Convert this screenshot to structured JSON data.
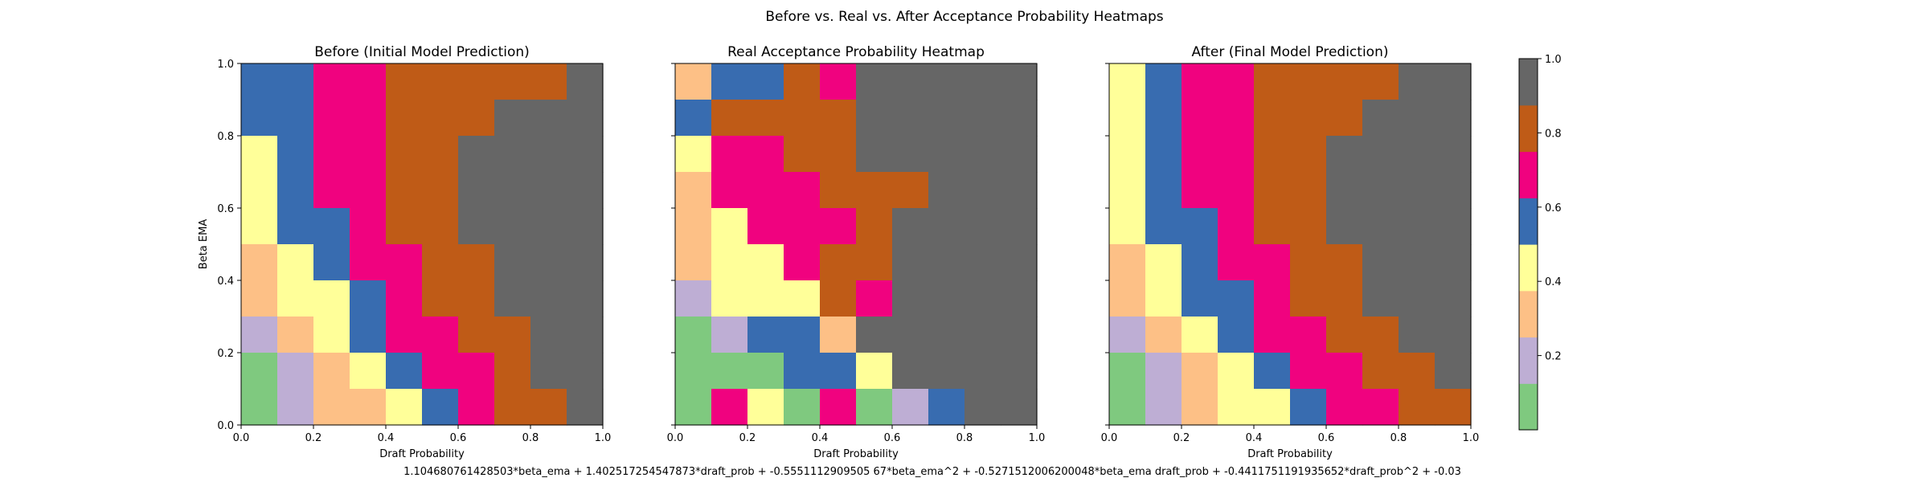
{
  "figure": {
    "suptitle": "Before vs. Real vs. After Acceptance Probability Heatmaps",
    "formula": "1.104680761428503*beta_ema + 1.402517254547873*draft_prob + -0.5551112909505 67*beta_ema^2 + -0.5271512006200048*beta_ema draft_prob + -0.4411751191935652*draft_prob^2 + -0.03"
  },
  "colorbar": {
    "ticks": [
      "0.2",
      "0.4",
      "0.6",
      "0.8",
      "1.0"
    ],
    "tick_values": [
      0.2,
      0.4,
      0.6,
      0.8,
      1.0
    ],
    "range": [
      0,
      1
    ],
    "colors": [
      "#7fc97f",
      "#beaed4",
      "#fdc086",
      "#ffff99",
      "#386cb0",
      "#f0027f",
      "#bf5b17",
      "#666666"
    ]
  },
  "chart_data": [
    {
      "type": "heatmap",
      "title": "Before (Initial Model Prediction)",
      "xlabel": "Draft Probability",
      "ylabel": "Beta EMA",
      "xlim": [
        0,
        1
      ],
      "ylim": [
        0,
        1
      ],
      "xticks": [
        "0.0",
        "0.2",
        "0.4",
        "0.6",
        "0.8",
        "1.0"
      ],
      "yticks": [
        "0.0",
        "0.2",
        "0.4",
        "0.6",
        "0.8",
        "1.0"
      ],
      "grid_note": "rows listed from top (beta_ema 0.9-1.0) to bottom (0.0-0.1); columns draft_prob 0.0-0.1 ... 0.9-1.0; values are color-bin indices 0..7",
      "bins": [
        [
          4,
          4,
          5,
          5,
          6,
          6,
          6,
          6,
          6,
          7
        ],
        [
          4,
          4,
          5,
          5,
          6,
          6,
          6,
          7,
          7,
          7
        ],
        [
          3,
          4,
          5,
          5,
          6,
          6,
          7,
          7,
          7,
          7
        ],
        [
          3,
          4,
          5,
          5,
          6,
          6,
          7,
          7,
          7,
          7
        ],
        [
          3,
          4,
          4,
          5,
          6,
          6,
          7,
          7,
          7,
          7
        ],
        [
          2,
          3,
          4,
          5,
          5,
          6,
          6,
          7,
          7,
          7
        ],
        [
          2,
          3,
          3,
          4,
          5,
          6,
          6,
          7,
          7,
          7
        ],
        [
          1,
          2,
          3,
          4,
          5,
          5,
          6,
          6,
          7,
          7
        ],
        [
          0,
          1,
          2,
          3,
          4,
          5,
          5,
          6,
          7,
          7
        ],
        [
          0,
          1,
          2,
          2,
          3,
          4,
          5,
          6,
          6,
          7
        ]
      ]
    },
    {
      "type": "heatmap",
      "title": "Real Acceptance Probability Heatmap",
      "xlabel": "Draft Probability",
      "ylabel": "",
      "xlim": [
        0,
        1
      ],
      "ylim": [
        0,
        1
      ],
      "xticks": [
        "0.0",
        "0.2",
        "0.4",
        "0.6",
        "0.8",
        "1.0"
      ],
      "yticks": [
        "",
        "",
        "",
        "",
        "",
        ""
      ],
      "bins": [
        [
          2,
          4,
          4,
          6,
          5,
          7,
          7,
          7,
          7,
          7
        ],
        [
          4,
          6,
          6,
          6,
          6,
          7,
          7,
          7,
          7,
          7
        ],
        [
          3,
          5,
          5,
          6,
          6,
          7,
          7,
          7,
          7,
          7
        ],
        [
          2,
          5,
          5,
          5,
          6,
          6,
          6,
          7,
          7,
          7
        ],
        [
          2,
          3,
          5,
          5,
          5,
          6,
          7,
          7,
          7,
          7
        ],
        [
          2,
          3,
          3,
          5,
          6,
          6,
          7,
          7,
          7,
          7
        ],
        [
          1,
          3,
          3,
          3,
          6,
          5,
          7,
          7,
          7,
          7
        ],
        [
          0,
          1,
          4,
          4,
          2,
          7,
          7,
          7,
          7,
          7
        ],
        [
          0,
          0,
          0,
          4,
          4,
          3,
          7,
          7,
          7,
          7
        ],
        [
          0,
          5,
          3,
          0,
          5,
          0,
          1,
          4,
          7,
          7
        ]
      ]
    },
    {
      "type": "heatmap",
      "title": "After (Final Model Prediction)",
      "xlabel": "Draft Probability",
      "ylabel": "",
      "xlim": [
        0,
        1
      ],
      "ylim": [
        0,
        1
      ],
      "xticks": [
        "0.0",
        "0.2",
        "0.4",
        "0.6",
        "0.8",
        "1.0"
      ],
      "yticks": [
        "",
        "",
        "",
        "",
        "",
        ""
      ],
      "bins": [
        [
          3,
          4,
          5,
          5,
          6,
          6,
          6,
          6,
          7,
          7
        ],
        [
          3,
          4,
          5,
          5,
          6,
          6,
          6,
          7,
          7,
          7
        ],
        [
          3,
          4,
          5,
          5,
          6,
          6,
          7,
          7,
          7,
          7
        ],
        [
          3,
          4,
          5,
          5,
          6,
          6,
          7,
          7,
          7,
          7
        ],
        [
          3,
          4,
          4,
          5,
          6,
          6,
          7,
          7,
          7,
          7
        ],
        [
          2,
          3,
          4,
          5,
          5,
          6,
          6,
          7,
          7,
          7
        ],
        [
          2,
          3,
          4,
          4,
          5,
          6,
          6,
          7,
          7,
          7
        ],
        [
          1,
          2,
          3,
          4,
          5,
          5,
          6,
          6,
          7,
          7
        ],
        [
          0,
          1,
          2,
          3,
          4,
          5,
          5,
          6,
          6,
          7
        ],
        [
          0,
          1,
          2,
          3,
          3,
          4,
          5,
          5,
          6,
          6
        ]
      ]
    }
  ]
}
